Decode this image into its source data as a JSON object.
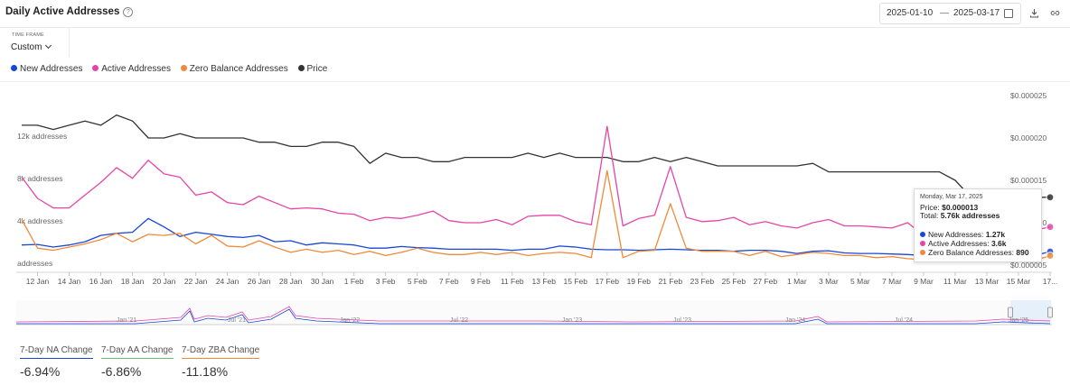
{
  "header": {
    "title": "Daily Active Addresses",
    "date_start": "2025-01-10",
    "date_end": "2025-03-17"
  },
  "timeframe": {
    "label": "TIME FRAME",
    "value": "Custom"
  },
  "colors": {
    "new": "#1847d4",
    "active": "#e645a8",
    "zero": "#f08a3a",
    "price": "#333333",
    "accent_green": "#6abf69"
  },
  "icons": [
    "help-icon",
    "calendar-icon",
    "download-icon",
    "link-icon",
    "chevron-down-icon"
  ],
  "chart_data": {
    "type": "line",
    "x": [
      "2025-01-11",
      "2025-01-12",
      "2025-01-13",
      "2025-01-14",
      "2025-01-15",
      "2025-01-16",
      "2025-01-17",
      "2025-01-18",
      "2025-01-19",
      "2025-01-20",
      "2025-01-21",
      "2025-01-22",
      "2025-01-23",
      "2025-01-24",
      "2025-01-25",
      "2025-01-26",
      "2025-01-27",
      "2025-01-28",
      "2025-01-29",
      "2025-01-30",
      "2025-01-31",
      "2025-02-01",
      "2025-02-02",
      "2025-02-03",
      "2025-02-04",
      "2025-02-05",
      "2025-02-06",
      "2025-02-07",
      "2025-02-08",
      "2025-02-09",
      "2025-02-10",
      "2025-02-11",
      "2025-02-12",
      "2025-02-13",
      "2025-02-14",
      "2025-02-15",
      "2025-02-16",
      "2025-02-17",
      "2025-02-18",
      "2025-02-19",
      "2025-02-20",
      "2025-02-21",
      "2025-02-22",
      "2025-02-23",
      "2025-02-24",
      "2025-02-25",
      "2025-02-26",
      "2025-02-27",
      "2025-02-28",
      "2025-03-01",
      "2025-03-02",
      "2025-03-03",
      "2025-03-04",
      "2025-03-05",
      "2025-03-06",
      "2025-03-07",
      "2025-03-08",
      "2025-03-09",
      "2025-03-10",
      "2025-03-11",
      "2025-03-12",
      "2025-03-13",
      "2025-03-14",
      "2025-03-15",
      "2025-03-16",
      "2025-03-17"
    ],
    "x_tick_labels": [
      "12 Jan",
      "14 Jan",
      "16 Jan",
      "18 Jan",
      "20 Jan",
      "22 Jan",
      "24 Jan",
      "26 Jan",
      "28 Jan",
      "30 Jan",
      "1 Feb",
      "3 Feb",
      "5 Feb",
      "7 Feb",
      "9 Feb",
      "11 Feb",
      "13 Feb",
      "15 Feb",
      "17 Feb",
      "19 Feb",
      "21 Feb",
      "23 Feb",
      "25 Feb",
      "27 Feb",
      "1 Mar",
      "3 Mar",
      "5 Mar",
      "7 Mar",
      "9 Mar",
      "11 Mar",
      "13 Mar",
      "15 Mar",
      "17..."
    ],
    "y_left_ticks": [
      "addresses",
      "4k addresses",
      "8k addresses",
      "12k addresses"
    ],
    "y_left_range": [
      0,
      16000
    ],
    "y_right_ticks": [
      "$0.000005",
      "$0.000010",
      "$0.000015",
      "$0.000020",
      "$0.000025"
    ],
    "y_right_range": [
      5e-06,
      2.5e-05
    ],
    "series": [
      {
        "name": "New Addresses",
        "axis": "left",
        "values": [
          1900,
          1950,
          1700,
          1900,
          2200,
          2800,
          3000,
          3100,
          4400,
          3600,
          2700,
          3100,
          2900,
          2700,
          2600,
          2800,
          2200,
          2300,
          1900,
          2100,
          2000,
          1900,
          1600,
          1600,
          1750,
          1650,
          1600,
          1500,
          1500,
          1500,
          1500,
          1400,
          1500,
          1500,
          1800,
          1700,
          1500,
          1450,
          1450,
          1400,
          1450,
          1500,
          1450,
          1400,
          1400,
          1300,
          1400,
          1400,
          1300,
          1100,
          1300,
          1350,
          1150,
          1100,
          1100,
          1050,
          1000,
          900,
          1000,
          1000,
          950,
          950,
          950,
          950,
          900,
          1270
        ]
      },
      {
        "name": "Active Addresses",
        "axis": "left",
        "values": [
          8300,
          6300,
          5400,
          5400,
          6600,
          7800,
          9200,
          8200,
          9900,
          8600,
          8300,
          6600,
          6900,
          5900,
          5700,
          6500,
          5900,
          5300,
          5400,
          5300,
          4900,
          4800,
          4200,
          4500,
          4400,
          4700,
          5100,
          4200,
          4000,
          4000,
          4300,
          3800,
          4600,
          4700,
          4700,
          4100,
          3800,
          13100,
          3700,
          4400,
          4700,
          9300,
          4500,
          4100,
          4200,
          4500,
          3800,
          4100,
          3700,
          3500,
          4000,
          4300,
          3700,
          3700,
          3600,
          3500,
          4000,
          2800,
          3500,
          3300,
          3400,
          3200,
          3300,
          3200,
          3300,
          3600
        ]
      },
      {
        "name": "Zero Balance Addresses",
        "axis": "left",
        "values": [
          4300,
          1600,
          1400,
          1700,
          2000,
          2400,
          3000,
          2200,
          2900,
          2800,
          3000,
          2000,
          2800,
          1800,
          1700,
          2300,
          1700,
          1200,
          1500,
          1200,
          1400,
          1000,
          1300,
          900,
          1200,
          1600,
          1200,
          1000,
          1000,
          1200,
          1000,
          1200,
          900,
          1100,
          1200,
          1100,
          700,
          8900,
          700,
          1300,
          1400,
          5800,
          1600,
          1300,
          1300,
          1300,
          900,
          1300,
          800,
          1000,
          1200,
          1100,
          900,
          900,
          700,
          800,
          600,
          500,
          800,
          700,
          600,
          500,
          500,
          600,
          400,
          890
        ]
      },
      {
        "name": "Price",
        "axis": "right",
        "values": [
          2.15e-05,
          2.15e-05,
          2.1e-05,
          2.15e-05,
          2.2e-05,
          2.15e-05,
          2.27e-05,
          2.2e-05,
          2e-05,
          2e-05,
          2.05e-05,
          2e-05,
          2e-05,
          2e-05,
          2e-05,
          1.95e-05,
          1.95e-05,
          1.9e-05,
          1.9e-05,
          1.95e-05,
          1.95e-05,
          1.9e-05,
          1.7e-05,
          1.82e-05,
          1.77e-05,
          1.77e-05,
          1.72e-05,
          1.72e-05,
          1.77e-05,
          1.77e-05,
          1.77e-05,
          1.77e-05,
          1.82e-05,
          1.77e-05,
          1.82e-05,
          1.77e-05,
          1.77e-05,
          1.77e-05,
          1.72e-05,
          1.72e-05,
          1.77e-05,
          1.72e-05,
          1.77e-05,
          1.72e-05,
          1.67e-05,
          1.67e-05,
          1.67e-05,
          1.67e-05,
          1.67e-05,
          1.67e-05,
          1.7e-05,
          1.6e-05,
          1.6e-05,
          1.6e-05,
          1.6e-05,
          1.6e-05,
          1.6e-05,
          1.6e-05,
          1.6e-05,
          1.5e-05,
          1.3e-05,
          1.3e-05,
          1.3e-05,
          1.3e-05,
          1.3e-05,
          1.3e-05
        ]
      }
    ],
    "navigator_labels": [
      "Jan '21",
      "Jul '21",
      "Jan '22",
      "Jul '22",
      "Jan '23",
      "Jul '23",
      "Jan '24",
      "Jul '24",
      "Jan '25"
    ],
    "tooltip": {
      "date": "Monday, Mar 17, 2025",
      "price_label": "Price:",
      "price_value": "$0.000013",
      "total_label": "Total:",
      "total_value": "5.76k addresses",
      "new_label": "New Addresses:",
      "new_value": "1.27k",
      "active_label": "Active Addresses:",
      "active_value": "3.6k",
      "zero_label": "Zero Balance Addresses:",
      "zero_value": "890"
    },
    "legend_position": "top-left",
    "grid": false
  },
  "stats": [
    {
      "label": "7-Day NA Change",
      "value": "-6.94%"
    },
    {
      "label": "7-Day AA Change",
      "value": "-6.86%"
    },
    {
      "label": "7-Day ZBA Change",
      "value": "-11.18%"
    }
  ]
}
